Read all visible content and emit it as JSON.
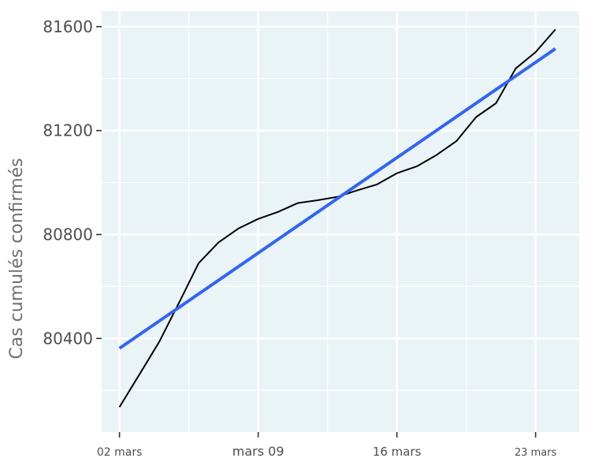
{
  "chart_data": {
    "type": "line",
    "xlabel": "",
    "ylabel": "Cas cumulés confirmés",
    "ylim": [
      80040,
      81660
    ],
    "y_ticks": [
      80400,
      80800,
      81200,
      81600
    ],
    "x_ticks": [
      {
        "day": 2,
        "label": "02 mars"
      },
      {
        "day": 9,
        "label": "mars 09"
      },
      {
        "day": 16,
        "label": "16 mars"
      },
      {
        "day": 23,
        "label": "23 mars"
      }
    ],
    "xlim": [
      1.1,
      25.2
    ],
    "grid": true,
    "series": [
      {
        "style": "line",
        "color": "#000000",
        "x": [
          2,
          3,
          4,
          5,
          6,
          7,
          8,
          9,
          10,
          11,
          12,
          13,
          14,
          15,
          16,
          17,
          18,
          19,
          20,
          21,
          22,
          23,
          24
        ],
        "y": [
          80136,
          80261,
          80386,
          80537,
          80690,
          80770,
          80823,
          80860,
          80887,
          80921,
          80932,
          80945,
          80970,
          80993,
          81036,
          81062,
          81106,
          81159,
          81252,
          81305,
          81439,
          81502,
          81589
        ]
      },
      {
        "style": "trend",
        "color": "#3366ee",
        "x": [
          2,
          24
        ],
        "y": [
          80362,
          81515
        ]
      }
    ]
  }
}
